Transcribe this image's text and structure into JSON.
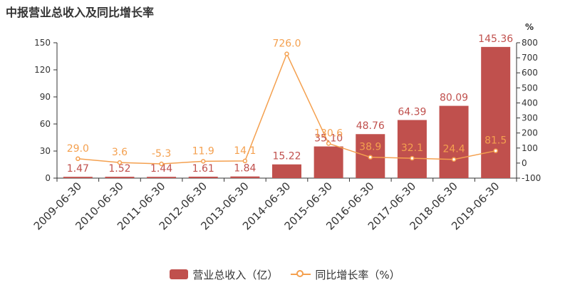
{
  "title": "中报营业总收入及同比增长率",
  "colors": {
    "bar": "#c0504d",
    "line": "#f4a04f",
    "axis": "#333333"
  },
  "chart_data": {
    "type": "bar+line",
    "categories": [
      "2009-06-30",
      "2010-06-30",
      "2011-06-30",
      "2012-06-30",
      "2013-06-30",
      "2014-06-30",
      "2015-06-30",
      "2016-06-30",
      "2017-06-30",
      "2018-06-30",
      "2019-06-30"
    ],
    "series": [
      {
        "name": "营业总收入（亿）",
        "type": "bar",
        "axis": "left",
        "values": [
          1.47,
          1.52,
          1.44,
          1.61,
          1.84,
          15.22,
          35.1,
          48.76,
          64.39,
          80.09,
          145.36
        ],
        "labels": [
          "1.47",
          "1.52",
          "1.44",
          "1.61",
          "1.84",
          "15.22",
          "35.10",
          "48.76",
          "64.39",
          "80.09",
          "145.36"
        ]
      },
      {
        "name": "同比增长率（%）",
        "type": "line",
        "axis": "right",
        "values": [
          29.0,
          3.6,
          -5.3,
          11.9,
          14.1,
          726.0,
          130.6,
          38.9,
          32.1,
          24.4,
          81.5
        ],
        "labels": [
          "29.0",
          "3.6",
          "-5.3",
          "11.9",
          "14.1",
          "726.0",
          "130.6",
          "38.9",
          "32.1",
          "24.4",
          "81.5"
        ]
      }
    ],
    "y_left": {
      "min": 0,
      "max": 150,
      "ticks": [
        "0",
        "30",
        "60",
        "90",
        "120",
        "150"
      ]
    },
    "y_right": {
      "min": -100,
      "max": 800,
      "ticks": [
        "-100",
        "0",
        "100",
        "200",
        "300",
        "400",
        "500",
        "600",
        "700",
        "800"
      ],
      "unit": "%"
    },
    "legend_position": "bottom-center",
    "grid": false
  },
  "legend": {
    "bar_label": "营业总收入（亿）",
    "line_label": "同比增长率（%）"
  }
}
